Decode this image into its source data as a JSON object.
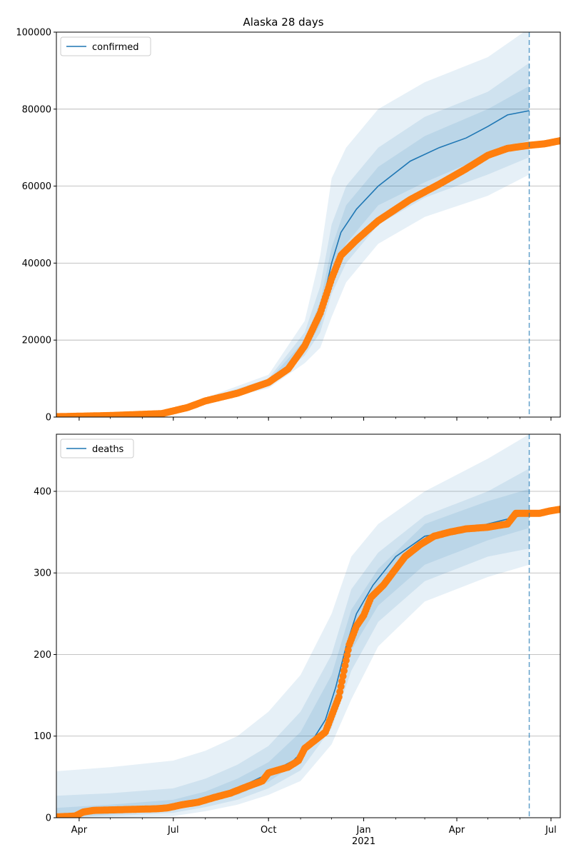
{
  "chart_data": {
    "title": "Alaska 28 days",
    "type": "line",
    "x_type": "date",
    "x_range": [
      "2020-03-10",
      "2021-07-10"
    ],
    "x_ticks": [
      {
        "date": "2020-04-01",
        "label": "Apr"
      },
      {
        "date": "2020-07-01",
        "label": "Jul"
      },
      {
        "date": "2020-10-01",
        "label": "Oct"
      },
      {
        "date": "2021-01-01",
        "label": "Jan",
        "sublabel": "2021"
      },
      {
        "date": "2021-04-01",
        "label": "Apr"
      },
      {
        "date": "2021-07-01",
        "label": "Jul"
      }
    ],
    "forecast_date": "2021-06-10",
    "grid": "horizontal",
    "colors": {
      "model": "#1f77b4",
      "observed": "#ff7f0e",
      "band": "#1f77b4",
      "grid": "#b0b0b0",
      "forecast_line": "#1f77b4"
    },
    "panels": [
      {
        "legend_label": "confirmed",
        "legend_position": "upper-left",
        "ylim": [
          0,
          100000
        ],
        "yticks": [
          0,
          20000,
          40000,
          60000,
          80000,
          100000
        ],
        "model_median": [
          {
            "x": "2020-03-10",
            "y": 100
          },
          {
            "x": "2020-05-01",
            "y": 400
          },
          {
            "x": "2020-06-20",
            "y": 900
          },
          {
            "x": "2020-07-15",
            "y": 2500
          },
          {
            "x": "2020-08-01",
            "y": 4200
          },
          {
            "x": "2020-09-01",
            "y": 6200
          },
          {
            "x": "2020-10-01",
            "y": 9000
          },
          {
            "x": "2020-10-20",
            "y": 12500
          },
          {
            "x": "2020-11-05",
            "y": 18500
          },
          {
            "x": "2020-11-20",
            "y": 27000
          },
          {
            "x": "2020-12-01",
            "y": 40000
          },
          {
            "x": "2020-12-10",
            "y": 48000
          },
          {
            "x": "2020-12-25",
            "y": 54000
          },
          {
            "x": "2021-01-15",
            "y": 60000
          },
          {
            "x": "2021-02-15",
            "y": 66500
          },
          {
            "x": "2021-03-15",
            "y": 70000
          },
          {
            "x": "2021-04-10",
            "y": 72500
          },
          {
            "x": "2021-05-01",
            "y": 75500
          },
          {
            "x": "2021-05-20",
            "y": 78500
          },
          {
            "x": "2021-06-10",
            "y": 79600
          }
        ],
        "observed": [
          {
            "x": "2020-03-10",
            "y": 100
          },
          {
            "x": "2020-05-01",
            "y": 400
          },
          {
            "x": "2020-06-20",
            "y": 900
          },
          {
            "x": "2020-07-15",
            "y": 2500
          },
          {
            "x": "2020-08-01",
            "y": 4200
          },
          {
            "x": "2020-09-01",
            "y": 6200
          },
          {
            "x": "2020-10-01",
            "y": 9000
          },
          {
            "x": "2020-10-20",
            "y": 12500
          },
          {
            "x": "2020-11-05",
            "y": 18500
          },
          {
            "x": "2020-11-20",
            "y": 27000
          },
          {
            "x": "2020-12-01",
            "y": 36000
          },
          {
            "x": "2020-12-10",
            "y": 42000
          },
          {
            "x": "2020-12-25",
            "y": 46000
          },
          {
            "x": "2021-01-15",
            "y": 51000
          },
          {
            "x": "2021-02-15",
            "y": 56500
          },
          {
            "x": "2021-03-15",
            "y": 60500
          },
          {
            "x": "2021-04-10",
            "y": 64500
          },
          {
            "x": "2021-05-01",
            "y": 68000
          },
          {
            "x": "2021-05-20",
            "y": 69800
          },
          {
            "x": "2021-06-10",
            "y": 70600
          },
          {
            "x": "2021-06-25",
            "y": 71000
          },
          {
            "x": "2021-07-10",
            "y": 71800
          }
        ],
        "bands": [
          {
            "label": "outer",
            "points": [
              {
                "x": "2020-03-10",
                "lo": 0,
                "hi": 300
              },
              {
                "x": "2020-06-20",
                "lo": 700,
                "hi": 1200
              },
              {
                "x": "2020-08-01",
                "lo": 3500,
                "hi": 5000
              },
              {
                "x": "2020-10-01",
                "lo": 7500,
                "hi": 11000
              },
              {
                "x": "2020-11-05",
                "lo": 14000,
                "hi": 25000
              },
              {
                "x": "2020-11-20",
                "lo": 18000,
                "hi": 42000
              },
              {
                "x": "2020-12-01",
                "lo": 26000,
                "hi": 62000
              },
              {
                "x": "2020-12-15",
                "lo": 35000,
                "hi": 70000
              },
              {
                "x": "2021-01-15",
                "lo": 45000,
                "hi": 80000
              },
              {
                "x": "2021-03-01",
                "lo": 52000,
                "hi": 87000
              },
              {
                "x": "2021-05-01",
                "lo": 57500,
                "hi": 93500
              },
              {
                "x": "2021-06-10",
                "lo": 63000,
                "hi": 101000
              }
            ]
          },
          {
            "label": "middle",
            "points": [
              {
                "x": "2020-03-10",
                "lo": 50,
                "hi": 200
              },
              {
                "x": "2020-06-20",
                "lo": 800,
                "hi": 1000
              },
              {
                "x": "2020-08-01",
                "lo": 3800,
                "hi": 4700
              },
              {
                "x": "2020-10-01",
                "lo": 8200,
                "hi": 10000
              },
              {
                "x": "2020-11-05",
                "lo": 16000,
                "hi": 22000
              },
              {
                "x": "2020-11-20",
                "lo": 22000,
                "hi": 34000
              },
              {
                "x": "2020-12-01",
                "lo": 32000,
                "hi": 50000
              },
              {
                "x": "2020-12-15",
                "lo": 40000,
                "hi": 60000
              },
              {
                "x": "2021-01-15",
                "lo": 50000,
                "hi": 70000
              },
              {
                "x": "2021-03-01",
                "lo": 57000,
                "hi": 78000
              },
              {
                "x": "2021-05-01",
                "lo": 63000,
                "hi": 84500
              },
              {
                "x": "2021-06-10",
                "lo": 67500,
                "hi": 92000
              }
            ]
          },
          {
            "label": "inner",
            "points": [
              {
                "x": "2020-03-10",
                "lo": 80,
                "hi": 150
              },
              {
                "x": "2020-06-20",
                "lo": 850,
                "hi": 950
              },
              {
                "x": "2020-08-01",
                "lo": 4000,
                "hi": 4500
              },
              {
                "x": "2020-10-01",
                "lo": 8600,
                "hi": 9500
              },
              {
                "x": "2020-11-05",
                "lo": 17000,
                "hi": 20000
              },
              {
                "x": "2020-11-20",
                "lo": 24000,
                "hi": 30000
              },
              {
                "x": "2020-12-01",
                "lo": 36000,
                "hi": 44000
              },
              {
                "x": "2020-12-15",
                "lo": 45000,
                "hi": 55000
              },
              {
                "x": "2021-01-15",
                "lo": 55000,
                "hi": 65000
              },
              {
                "x": "2021-03-01",
                "lo": 61000,
                "hi": 73000
              },
              {
                "x": "2021-05-01",
                "lo": 68000,
                "hi": 80000
              },
              {
                "x": "2021-06-10",
                "lo": 72000,
                "hi": 86000
              }
            ]
          }
        ]
      },
      {
        "legend_label": "deaths",
        "legend_position": "upper-left",
        "ylim": [
          0,
          470
        ],
        "yticks": [
          0,
          100,
          200,
          300,
          400
        ],
        "model_median": [
          {
            "x": "2020-03-10",
            "y": 2
          },
          {
            "x": "2020-04-15",
            "y": 7
          },
          {
            "x": "2020-06-01",
            "y": 11
          },
          {
            "x": "2020-07-01",
            "y": 15
          },
          {
            "x": "2020-08-01",
            "y": 24
          },
          {
            "x": "2020-09-01",
            "y": 36
          },
          {
            "x": "2020-10-01",
            "y": 54
          },
          {
            "x": "2020-10-25",
            "y": 70
          },
          {
            "x": "2020-11-10",
            "y": 90
          },
          {
            "x": "2020-11-25",
            "y": 120
          },
          {
            "x": "2020-12-05",
            "y": 160
          },
          {
            "x": "2020-12-15",
            "y": 210
          },
          {
            "x": "2020-12-25",
            "y": 250
          },
          {
            "x": "2021-01-10",
            "y": 285
          },
          {
            "x": "2021-02-01",
            "y": 320
          },
          {
            "x": "2021-03-01",
            "y": 345
          },
          {
            "x": "2021-04-15",
            "y": 355
          },
          {
            "x": "2021-05-20",
            "y": 366
          },
          {
            "x": "2021-06-10",
            "y": 373
          }
        ],
        "observed": [
          {
            "x": "2020-03-10",
            "y": 1
          },
          {
            "x": "2020-03-28",
            "y": 2
          },
          {
            "x": "2020-04-05",
            "y": 7
          },
          {
            "x": "2020-04-15",
            "y": 9
          },
          {
            "x": "2020-05-15",
            "y": 10
          },
          {
            "x": "2020-06-15",
            "y": 11
          },
          {
            "x": "2020-06-25",
            "y": 12
          },
          {
            "x": "2020-07-10",
            "y": 16
          },
          {
            "x": "2020-07-25",
            "y": 19
          },
          {
            "x": "2020-08-10",
            "y": 25
          },
          {
            "x": "2020-08-25",
            "y": 30
          },
          {
            "x": "2020-09-10",
            "y": 38
          },
          {
            "x": "2020-09-25",
            "y": 45
          },
          {
            "x": "2020-10-01",
            "y": 55
          },
          {
            "x": "2020-10-20",
            "y": 62
          },
          {
            "x": "2020-10-30",
            "y": 70
          },
          {
            "x": "2020-11-05",
            "y": 85
          },
          {
            "x": "2020-11-15",
            "y": 95
          },
          {
            "x": "2020-11-25",
            "y": 105
          },
          {
            "x": "2020-12-01",
            "y": 125
          },
          {
            "x": "2020-12-08",
            "y": 148
          },
          {
            "x": "2020-12-13",
            "y": 180
          },
          {
            "x": "2020-12-18",
            "y": 212
          },
          {
            "x": "2020-12-25",
            "y": 235
          },
          {
            "x": "2021-01-01",
            "y": 248
          },
          {
            "x": "2021-01-08",
            "y": 270
          },
          {
            "x": "2021-01-20",
            "y": 285
          },
          {
            "x": "2021-02-01",
            "y": 305
          },
          {
            "x": "2021-02-10",
            "y": 320
          },
          {
            "x": "2021-02-25",
            "y": 335
          },
          {
            "x": "2021-03-10",
            "y": 345
          },
          {
            "x": "2021-03-25",
            "y": 350
          },
          {
            "x": "2021-04-10",
            "y": 354
          },
          {
            "x": "2021-05-01",
            "y": 356
          },
          {
            "x": "2021-05-20",
            "y": 360
          },
          {
            "x": "2021-05-28",
            "y": 373
          },
          {
            "x": "2021-06-20",
            "y": 373
          },
          {
            "x": "2021-06-30",
            "y": 376
          },
          {
            "x": "2021-07-10",
            "y": 378
          }
        ],
        "bands": [
          {
            "label": "outer",
            "points": [
              {
                "x": "2020-03-10",
                "lo": 0,
                "hi": 57
              },
              {
                "x": "2020-05-01",
                "lo": 0,
                "hi": 62
              },
              {
                "x": "2020-07-01",
                "lo": 2,
                "hi": 70
              },
              {
                "x": "2020-08-01",
                "lo": 8,
                "hi": 82
              },
              {
                "x": "2020-09-01",
                "lo": 16,
                "hi": 100
              },
              {
                "x": "2020-10-01",
                "lo": 28,
                "hi": 130
              },
              {
                "x": "2020-11-01",
                "lo": 45,
                "hi": 175
              },
              {
                "x": "2020-12-01",
                "lo": 90,
                "hi": 250
              },
              {
                "x": "2020-12-20",
                "lo": 145,
                "hi": 320
              },
              {
                "x": "2021-01-15",
                "lo": 210,
                "hi": 360
              },
              {
                "x": "2021-03-01",
                "lo": 265,
                "hi": 400
              },
              {
                "x": "2021-05-01",
                "lo": 295,
                "hi": 440
              },
              {
                "x": "2021-06-10",
                "lo": 310,
                "hi": 470
              }
            ]
          },
          {
            "label": "middle",
            "points": [
              {
                "x": "2020-03-10",
                "lo": 0,
                "hi": 27
              },
              {
                "x": "2020-05-01",
                "lo": 2,
                "hi": 30
              },
              {
                "x": "2020-07-01",
                "lo": 6,
                "hi": 36
              },
              {
                "x": "2020-08-01",
                "lo": 13,
                "hi": 48
              },
              {
                "x": "2020-09-01",
                "lo": 22,
                "hi": 65
              },
              {
                "x": "2020-10-01",
                "lo": 36,
                "hi": 88
              },
              {
                "x": "2020-11-01",
                "lo": 58,
                "hi": 130
              },
              {
                "x": "2020-12-01",
                "lo": 110,
                "hi": 200
              },
              {
                "x": "2020-12-20",
                "lo": 180,
                "hi": 280
              },
              {
                "x": "2021-01-15",
                "lo": 240,
                "hi": 325
              },
              {
                "x": "2021-03-01",
                "lo": 290,
                "hi": 370
              },
              {
                "x": "2021-05-01",
                "lo": 320,
                "hi": 400
              },
              {
                "x": "2021-06-10",
                "lo": 330,
                "hi": 428
              }
            ]
          },
          {
            "label": "inner",
            "points": [
              {
                "x": "2020-03-10",
                "lo": 0,
                "hi": 12
              },
              {
                "x": "2020-05-01",
                "lo": 4,
                "hi": 16
              },
              {
                "x": "2020-07-01",
                "lo": 10,
                "hi": 22
              },
              {
                "x": "2020-08-01",
                "lo": 18,
                "hi": 32
              },
              {
                "x": "2020-09-01",
                "lo": 28,
                "hi": 48
              },
              {
                "x": "2020-10-01",
                "lo": 44,
                "hi": 68
              },
              {
                "x": "2020-11-01",
                "lo": 70,
                "hi": 105
              },
              {
                "x": "2020-12-01",
                "lo": 128,
                "hi": 175
              },
              {
                "x": "2020-12-20",
                "lo": 205,
                "hi": 255
              },
              {
                "x": "2021-01-15",
                "lo": 260,
                "hi": 305
              },
              {
                "x": "2021-03-01",
                "lo": 310,
                "hi": 360
              },
              {
                "x": "2021-05-01",
                "lo": 340,
                "hi": 388
              },
              {
                "x": "2021-06-10",
                "lo": 355,
                "hi": 403
              }
            ]
          }
        ]
      }
    ]
  }
}
